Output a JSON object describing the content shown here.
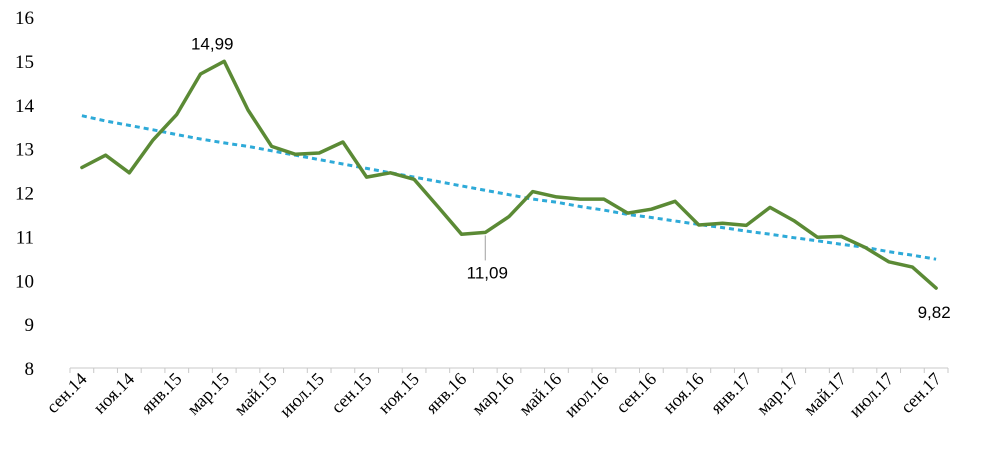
{
  "chart_data": {
    "type": "line",
    "xlabel": "",
    "ylabel": "",
    "ylim": [
      8,
      16
    ],
    "yticks": [
      "8",
      "9",
      "10",
      "11",
      "12",
      "13",
      "14",
      "15",
      "16"
    ],
    "grid": false,
    "x": [
      "сен.14",
      "окт.14",
      "ноя.14",
      "дек.14",
      "янв.15",
      "фев.15",
      "мар.15",
      "апр.15",
      "май.15",
      "июн.15",
      "июл.15",
      "авг.15",
      "сен.15",
      "окт.15",
      "ноя.15",
      "дек.15",
      "янв.16",
      "фев.16",
      "мар.16",
      "апр.16",
      "май.16",
      "июн.16",
      "июл.16",
      "авг.16",
      "сен.16",
      "окт.16",
      "ноя.16",
      "дек.16",
      "янв.17",
      "фев.17",
      "мар.17",
      "апр.17",
      "май.17",
      "июн.17",
      "июл.17",
      "авг.17",
      "сен.17"
    ],
    "xtick_labels": [
      "сен.14",
      "ноя.14",
      "янв.15",
      "мар.15",
      "май.15",
      "июл.15",
      "сен.15",
      "ноя.15",
      "янв.16",
      "мар.16",
      "май.16",
      "июл.16",
      "сен.16",
      "ноя.16",
      "янв.17",
      "мар.17",
      "май.17",
      "июл.17",
      "сен.17"
    ],
    "series": [
      {
        "style": "solid",
        "color": "#5b8a35",
        "values": [
          12.57,
          12.85,
          12.45,
          13.2,
          13.78,
          14.7,
          14.99,
          13.88,
          13.05,
          12.87,
          12.9,
          13.15,
          12.35,
          12.45,
          12.3,
          11.68,
          11.05,
          11.09,
          11.45,
          12.02,
          11.9,
          11.85,
          11.85,
          11.53,
          11.62,
          11.8,
          11.26,
          11.3,
          11.25,
          11.66,
          11.36,
          10.98,
          11.0,
          10.75,
          10.42,
          10.3,
          9.82
        ]
      },
      {
        "style": "dashed-trendline",
        "color": "#2eaad8",
        "values": [
          13.75,
          13.63,
          13.53,
          13.43,
          13.32,
          13.22,
          13.13,
          13.05,
          12.95,
          12.85,
          12.75,
          12.65,
          12.55,
          12.45,
          12.35,
          12.25,
          12.15,
          12.05,
          11.95,
          11.85,
          11.78,
          11.68,
          11.6,
          11.5,
          11.43,
          11.35,
          11.27,
          11.2,
          11.12,
          11.05,
          10.97,
          10.9,
          10.82,
          10.75,
          10.65,
          10.57,
          10.48
        ]
      }
    ],
    "annotations": [
      {
        "text": "14,99",
        "index": 6
      },
      {
        "text": "11,09",
        "index": 17
      },
      {
        "text": "9,82",
        "index": 36
      }
    ]
  }
}
